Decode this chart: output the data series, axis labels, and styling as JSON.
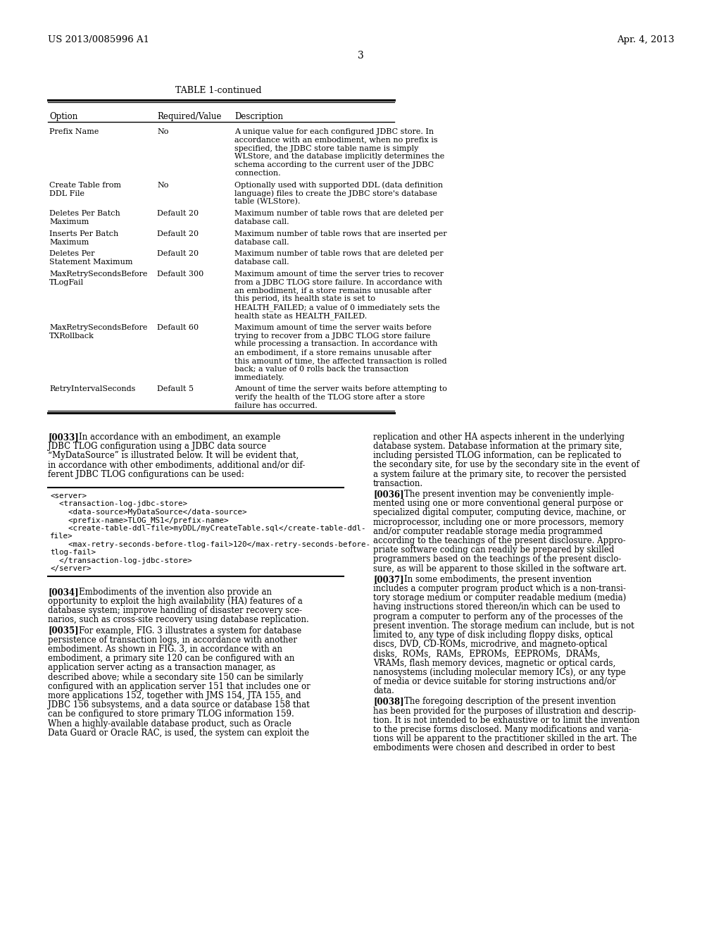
{
  "background_color": "#ffffff",
  "header_left": "US 2013/0085996 A1",
  "header_right": "Apr. 4, 2013",
  "page_number": "3",
  "table_title": "TABLE 1-continued",
  "table_columns": [
    "Option",
    "Required/Value",
    "Description"
  ],
  "table_rows": [
    {
      "option": "Prefix Name",
      "required": "No",
      "description": "A unique value for each configured JDBC store. In\naccordance with an embodiment, when no prefix is\nspecified, the JDBC store table name is simply\nWLStore, and the database implicitly determines the\nschema according to the current user of the JDBC\nconnection."
    },
    {
      "option": "Create Table from\nDDL File",
      "required": "No",
      "description": "Optionally used with supported DDL (data definition\nlanguage) files to create the JDBC store's database\ntable (WLStore)."
    },
    {
      "option": "Deletes Per Batch\nMaximum",
      "required": "Default 20",
      "description": "Maximum number of table rows that are deleted per\ndatabase call."
    },
    {
      "option": "Inserts Per Batch\nMaximum",
      "required": "Default 20",
      "description": "Maximum number of table rows that are inserted per\ndatabase call."
    },
    {
      "option": "Deletes Per\nStatement Maximum",
      "required": "Default 20",
      "description": "Maximum number of table rows that are deleted per\ndatabase call."
    },
    {
      "option": "MaxRetrySecondsBefore\nTLogFail",
      "required": "Default 300",
      "description": "Maximum amount of time the server tries to recover\nfrom a JDBC TLOG store failure. In accordance with\nan embodiment, if a store remains unusable after\nthis period, its health state is set to\nHEALTH_FAILED; a value of 0 immediately sets the\nhealth state as HEALTH_FAILED."
    },
    {
      "option": "MaxRetrySecondsBefore\nTXRollback",
      "required": "Default 60",
      "description": "Maximum amount of time the server waits before\ntrying to recover from a JDBC TLOG store failure\nwhile processing a transaction. In accordance with\nan embodiment, if a store remains unusable after\nthis amount of time, the affected transaction is rolled\nback; a value of 0 rolls back the transaction\nimmediately."
    },
    {
      "option": "RetryIntervalSeconds",
      "required": "Default 5",
      "description": "Amount of time the server waits before attempting to\nverify the health of the TLOG store after a store\nfailure has occurred."
    }
  ],
  "body_left_para1_label": "[0033]",
  "body_left_para1": "In accordance with an embodiment, an example JDBC TLOG configuration using a JDBC data source “MyDataSource” is illustrated below. It will be evident that, in accordance with other embodiments, additional and/or dif-ferent JDBC TLOG configurations can be used:",
  "code_block_lines": [
    "<server>",
    "  <transaction-log-jdbc-store>",
    "    <data-source>MyDataSource</data-source>",
    "    <prefix-name>TLOG_MS1</prefix-name>",
    "    <create-table-ddl-file>myDDL/myCreateTable.sql</create-table-ddl-",
    "file>",
    "    <max-retry-seconds-before-tlog-fail>120</max-retry-seconds-before-",
    "tlog-fail>",
    "  </transaction-log-jdbc-store>",
    "</server>"
  ],
  "body_left_para2_label": "[0034]",
  "body_left_para2": "Embodiments of the invention also provide an opportunity to exploit the high availability (HA) features of a database system; improve handling of disaster recovery sce-narios, such as cross-site recovery using database replication.",
  "body_left_para3_label": "[0035]",
  "body_left_para3_lines": [
    "[0035]   For example, FIG. 3 illustrates a system for database",
    "persistence of transaction logs, in accordance with another",
    "embodiment. As shown in FIG. 3, in accordance with an",
    "embodiment, a primary site 120 can be configured with an",
    "application server acting as a transaction manager, as",
    "described above; while a secondary site 150 can be similarly",
    "configured with an application server 151 that includes one or",
    "more applications 152, together with JMS 154, JTA 155, and",
    "JDBC 156 subsystems, and a data source or database 158 that",
    "can be configured to store primary TLOG information 159.",
    "When a highly-available database product, such as Oracle",
    "Data Guard or Oracle RAC, is used, the system can exploit the"
  ],
  "body_right_para1_lines": [
    "replication and other HA aspects inherent in the underlying",
    "database system. Database information at the primary site,",
    "including persisted TLOG information, can be replicated to",
    "the secondary site, for use by the secondary site in the event of",
    "a system failure at the primary site, to recover the persisted",
    "transaction."
  ],
  "body_right_para2_lines": [
    "[0036]   The present invention may be conveniently imple-",
    "mented using one or more conventional general purpose or",
    "specialized digital computer, computing device, machine, or",
    "microprocessor, including one or more processors, memory",
    "and/or computer readable storage media programmed",
    "according to the teachings of the present disclosure. Appro-",
    "priate software coding can readily be prepared by skilled",
    "programmers based on the teachings of the present disclo-",
    "sure, as will be apparent to those skilled in the software art."
  ],
  "body_right_para3_lines": [
    "[0037]   In some embodiments, the present invention",
    "includes a computer program product which is a non-transi-",
    "tory storage medium or computer readable medium (media)",
    "having instructions stored thereon/in which can be used to",
    "program a computer to perform any of the processes of the",
    "present invention. The storage medium can include, but is not",
    "limited to, any type of disk including floppy disks, optical",
    "discs, DVD, CD-ROMs, microdrive, and magneto-optical",
    "disks,  ROMs,  RAMs,  EPROMs,  EEPROMs,  DRAMs,",
    "VRAMs, flash memory devices, magnetic or optical cards,",
    "nanosystems (including molecular memory ICs), or any type",
    "of media or device suitable for storing instructions and/or",
    "data."
  ],
  "body_right_para4_lines": [
    "[0038]   The foregoing description of the present invention",
    "has been provided for the purposes of illustration and descrip-",
    "tion. It is not intended to be exhaustive or to limit the invention",
    "to the precise forms disclosed. Many modifications and varia-",
    "tions will be apparent to the practitioner skilled in the art. The",
    "embodiments were chosen and described in order to best"
  ],
  "body_left_para1_lines": [
    "[0033]   In accordance with an embodiment, an example",
    "JDBC TLOG configuration using a JDBC data source",
    "“MyDataSource” is illustrated below. It will be evident that,",
    "in accordance with other embodiments, additional and/or dif-",
    "ferent JDBC TLOG configurations can be used:"
  ],
  "body_left_para2_lines": [
    "[0034]   Embodiments of the invention also provide an",
    "opportunity to exploit the high availability (HA) features of a",
    "database system; improve handling of disaster recovery sce-",
    "narios, such as cross-site recovery using database replication."
  ]
}
